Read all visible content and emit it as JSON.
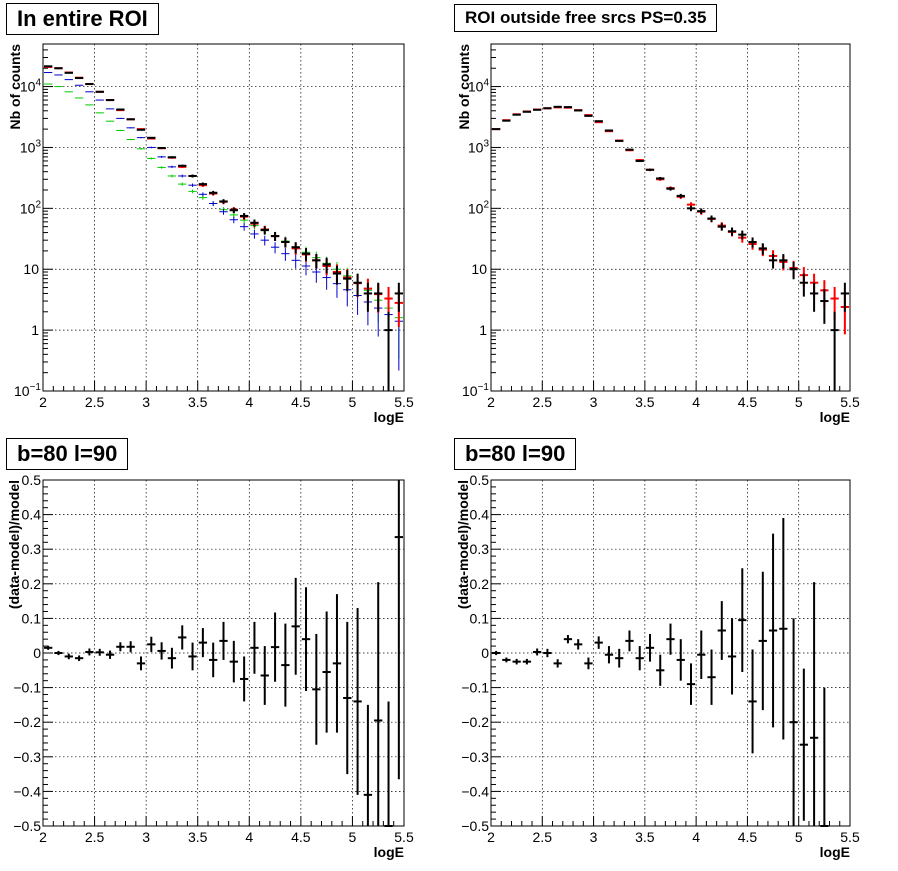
{
  "chart_data": [
    {
      "type": "scatter",
      "title": "In entire ROI",
      "xlabel": "logE",
      "ylabel": "Nb of counts",
      "log_y": true,
      "xlim": [
        2,
        5.5
      ],
      "ylim": [
        0.1,
        50000
      ],
      "x_ticks": [
        "2",
        "2.5",
        "3",
        "3.5",
        "4",
        "4.5",
        "5",
        "5.5"
      ],
      "y_ticks": [
        {
          "base": "10",
          "exp": "−1"
        },
        {
          "base": "1",
          "exp": ""
        },
        {
          "base": "10",
          "exp": ""
        },
        {
          "base": "10",
          "exp": "2"
        },
        {
          "base": "10",
          "exp": "3"
        },
        {
          "base": "10",
          "exp": "4"
        }
      ],
      "grid": true,
      "series": [
        {
          "color": "#00cc00",
          "x": [
            2.05,
            2.15,
            2.25,
            2.35,
            2.45,
            2.55,
            2.65,
            2.75,
            2.85,
            2.95,
            3.05,
            3.15,
            3.25,
            3.35,
            3.45,
            3.55,
            3.65,
            3.75,
            3.85,
            3.95,
            4.05,
            4.15,
            4.25,
            4.35,
            4.45,
            4.55,
            4.65,
            4.75,
            4.85,
            4.95,
            5.05,
            5.15,
            5.25,
            5.35,
            5.45
          ],
          "y": [
            11000,
            10000,
            8200,
            6500,
            5000,
            3700,
            2700,
            1900,
            1350,
            950,
            660,
            470,
            340,
            250,
            190,
            150,
            120,
            95,
            78,
            64,
            52,
            43,
            35,
            29,
            23,
            19,
            15.5,
            12.5,
            10,
            7.8,
            6,
            4.5,
            3.1,
            2.3,
            1.6
          ]
        },
        {
          "color": "#0000cc",
          "x": [
            2.05,
            2.15,
            2.25,
            2.35,
            2.45,
            2.55,
            2.65,
            2.75,
            2.85,
            2.95,
            3.05,
            3.15,
            3.25,
            3.35,
            3.45,
            3.55,
            3.65,
            3.75,
            3.85,
            3.95,
            4.05,
            4.15,
            4.25,
            4.35,
            4.45,
            4.55,
            4.65,
            4.75,
            4.85,
            4.95,
            5.05,
            5.15,
            5.25,
            5.35,
            5.45
          ],
          "y": [
            17000,
            15500,
            13000,
            10500,
            8200,
            6000,
            4300,
            3000,
            2100,
            1450,
            1000,
            700,
            480,
            340,
            240,
            170,
            120,
            88,
            65,
            50,
            38,
            30,
            23,
            18,
            14,
            11.3,
            9,
            7.3,
            5.8,
            4.6,
            3.7,
            2.9,
            2.3,
            1.8,
            1.4
          ]
        },
        {
          "color": "#ff0000",
          "x": [
            2.05,
            2.15,
            2.25,
            2.35,
            2.45,
            2.55,
            2.65,
            2.75,
            2.85,
            2.95,
            3.05,
            3.15,
            3.25,
            3.35,
            3.45,
            3.55,
            3.65,
            3.75,
            3.85,
            3.95,
            4.05,
            4.15,
            4.25,
            4.35,
            4.45,
            4.55,
            4.65,
            4.75,
            4.85,
            4.95,
            5.05,
            5.15,
            5.25,
            5.35,
            5.45
          ],
          "y": [
            21000,
            20000,
            17000,
            14000,
            11000,
            8200,
            6000,
            4100,
            2900,
            2000,
            1400,
            970,
            680,
            480,
            340,
            240,
            175,
            128,
            95,
            73,
            56,
            45,
            35,
            28,
            22,
            17.5,
            14,
            11.3,
            9,
            7.3,
            5.9,
            4.8,
            3.9,
            3.3,
            2.8
          ]
        },
        {
          "color": "#000000",
          "x": [
            2.05,
            2.15,
            2.25,
            2.35,
            2.45,
            2.55,
            2.65,
            2.75,
            2.85,
            2.95,
            3.05,
            3.15,
            3.25,
            3.35,
            3.45,
            3.55,
            3.65,
            3.75,
            3.85,
            3.95,
            4.05,
            4.15,
            4.25,
            4.35,
            4.45,
            4.55,
            4.65,
            4.75,
            4.85,
            4.95,
            5.05,
            5.15,
            5.25,
            5.35,
            5.45
          ],
          "y": [
            21500,
            20000,
            16800,
            13800,
            11000,
            8200,
            6000,
            4200,
            2900,
            1950,
            1440,
            980,
            690,
            500,
            340,
            250,
            180,
            130,
            93,
            75,
            58,
            44,
            35,
            28,
            23,
            18,
            14,
            12,
            8.5,
            7,
            6,
            4,
            4,
            1,
            4
          ]
        }
      ]
    },
    {
      "type": "scatter",
      "title": "ROI outside free srcs PS=0.35",
      "xlabel": "logE",
      "ylabel": "Nb of counts",
      "log_y": true,
      "xlim": [
        2,
        5.5
      ],
      "ylim": [
        0.1,
        50000
      ],
      "x_ticks": [
        "2",
        "2.5",
        "3",
        "3.5",
        "4",
        "4.5",
        "5",
        "5.5"
      ],
      "y_ticks": [
        {
          "base": "10",
          "exp": "−1"
        },
        {
          "base": "1",
          "exp": ""
        },
        {
          "base": "10",
          "exp": ""
        },
        {
          "base": "10",
          "exp": "2"
        },
        {
          "base": "10",
          "exp": "3"
        },
        {
          "base": "10",
          "exp": "4"
        }
      ],
      "grid": true,
      "series": [
        {
          "color": "#ff0000",
          "x": [
            2.05,
            2.15,
            2.25,
            2.35,
            2.45,
            2.55,
            2.65,
            2.75,
            2.85,
            2.95,
            3.05,
            3.15,
            3.25,
            3.35,
            3.45,
            3.55,
            3.65,
            3.75,
            3.85,
            3.95,
            4.05,
            4.15,
            4.25,
            4.35,
            4.45,
            4.55,
            4.65,
            4.75,
            4.85,
            4.95,
            5.05,
            5.15,
            5.25,
            5.35,
            5.45
          ],
          "y": [
            2000,
            2800,
            3500,
            3900,
            4200,
            4400,
            4550,
            4500,
            4100,
            3400,
            2600,
            1850,
            1300,
            900,
            620,
            430,
            300,
            215,
            155,
            115,
            88,
            67,
            52,
            41,
            33,
            26,
            21,
            16.5,
            13.2,
            10.5,
            8,
            6,
            4.5,
            3.3,
            2.4
          ]
        },
        {
          "color": "#000000",
          "x": [
            2.05,
            2.15,
            2.25,
            2.35,
            2.45,
            2.55,
            2.65,
            2.75,
            2.85,
            2.95,
            3.05,
            3.15,
            3.25,
            3.35,
            3.45,
            3.55,
            3.65,
            3.75,
            3.85,
            3.95,
            4.05,
            4.15,
            4.25,
            4.35,
            4.45,
            4.55,
            4.65,
            4.75,
            4.85,
            4.95,
            5.05,
            5.15,
            5.25,
            5.35,
            5.45
          ],
          "y": [
            2000,
            2750,
            3450,
            3850,
            4150,
            4400,
            4650,
            4600,
            4050,
            3300,
            2700,
            1900,
            1280,
            920,
            600,
            430,
            310,
            210,
            160,
            100,
            90,
            68,
            50,
            42,
            37,
            28,
            22,
            14,
            14,
            10,
            6,
            4,
            3,
            1,
            4
          ]
        }
      ]
    },
    {
      "type": "scatter",
      "title": "b=80 l=90",
      "xlabel": "logE",
      "ylabel": "(data-model)/model",
      "log_y": false,
      "xlim": [
        2,
        5.5
      ],
      "ylim": [
        -0.5,
        0.5
      ],
      "x_ticks": [
        "2",
        "2.5",
        "3",
        "3.5",
        "4",
        "4.5",
        "5",
        "5.5"
      ],
      "y_ticks": [
        "−0.5",
        "−0.4",
        "−0.3",
        "−0.2",
        "−0.1",
        "0",
        "0.1",
        "0.2",
        "0.3",
        "0.4",
        "0.5"
      ],
      "grid": true,
      "series": [
        {
          "color": "#000000",
          "x": [
            2.05,
            2.15,
            2.25,
            2.35,
            2.45,
            2.55,
            2.65,
            2.75,
            2.85,
            2.95,
            3.05,
            3.15,
            3.25,
            3.35,
            3.45,
            3.55,
            3.65,
            3.75,
            3.85,
            3.95,
            4.05,
            4.15,
            4.25,
            4.35,
            4.45,
            4.55,
            4.65,
            4.75,
            4.85,
            4.95,
            5.05,
            5.15,
            5.25,
            5.35,
            5.45
          ],
          "y": [
            0.015,
            0.0,
            -0.01,
            -0.015,
            0.003,
            0.002,
            -0.005,
            0.018,
            0.018,
            -0.03,
            0.025,
            0.006,
            -0.015,
            0.045,
            -0.01,
            0.03,
            -0.02,
            0.035,
            -0.025,
            -0.075,
            0.015,
            -0.065,
            0.017,
            -0.035,
            0.077,
            0.04,
            -0.105,
            -0.055,
            -0.03,
            -0.13,
            -0.14,
            -0.41,
            -0.195,
            -0.5,
            0.335
          ],
          "err": [
            0.006,
            0.006,
            0.008,
            0.008,
            0.01,
            0.01,
            0.012,
            0.013,
            0.016,
            0.02,
            0.022,
            0.025,
            0.03,
            0.035,
            0.04,
            0.042,
            0.05,
            0.055,
            0.06,
            0.065,
            0.075,
            0.085,
            0.1,
            0.12,
            0.14,
            0.15,
            0.16,
            0.175,
            0.2,
            0.22,
            0.27,
            0.26,
            0.4,
            0.36,
            0.7
          ]
        }
      ]
    },
    {
      "type": "scatter",
      "title": "b=80 l=90",
      "xlabel": "logE",
      "ylabel": "(data-model)/model",
      "log_y": false,
      "xlim": [
        2,
        5.5
      ],
      "ylim": [
        -0.5,
        0.5
      ],
      "x_ticks": [
        "2",
        "2.5",
        "3",
        "3.5",
        "4",
        "4.5",
        "5",
        "5.5"
      ],
      "y_ticks": [
        "−0.5",
        "−0.4",
        "−0.3",
        "−0.2",
        "−0.1",
        "0",
        "0.1",
        "0.2",
        "0.3",
        "0.4",
        "0.5"
      ],
      "grid": true,
      "series": [
        {
          "color": "#000000",
          "x": [
            2.05,
            2.15,
            2.25,
            2.35,
            2.45,
            2.55,
            2.65,
            2.75,
            2.85,
            2.95,
            3.05,
            3.15,
            3.25,
            3.35,
            3.45,
            3.55,
            3.65,
            3.75,
            3.85,
            3.95,
            4.05,
            4.15,
            4.25,
            4.35,
            4.45,
            4.55,
            4.65,
            4.75,
            4.85,
            4.95,
            5.05,
            5.15,
            5.25
          ],
          "y": [
            0.0,
            -0.02,
            -0.025,
            -0.025,
            0.003,
            0.0,
            -0.03,
            0.04,
            0.025,
            -0.03,
            0.03,
            -0.005,
            -0.015,
            0.035,
            -0.015,
            0.015,
            -0.05,
            0.04,
            -0.02,
            -0.09,
            -0.005,
            -0.07,
            0.065,
            -0.01,
            0.095,
            -0.14,
            0.035,
            0.065,
            0.07,
            -0.2,
            -0.265,
            -0.245,
            -0.5
          ],
          "err": [
            0.006,
            0.007,
            0.008,
            0.008,
            0.01,
            0.012,
            0.012,
            0.012,
            0.015,
            0.017,
            0.018,
            0.025,
            0.027,
            0.03,
            0.035,
            0.04,
            0.045,
            0.045,
            0.06,
            0.06,
            0.07,
            0.08,
            0.085,
            0.11,
            0.15,
            0.15,
            0.2,
            0.28,
            0.32,
            0.3,
            0.22,
            0.45,
            0.4
          ]
        }
      ]
    }
  ]
}
